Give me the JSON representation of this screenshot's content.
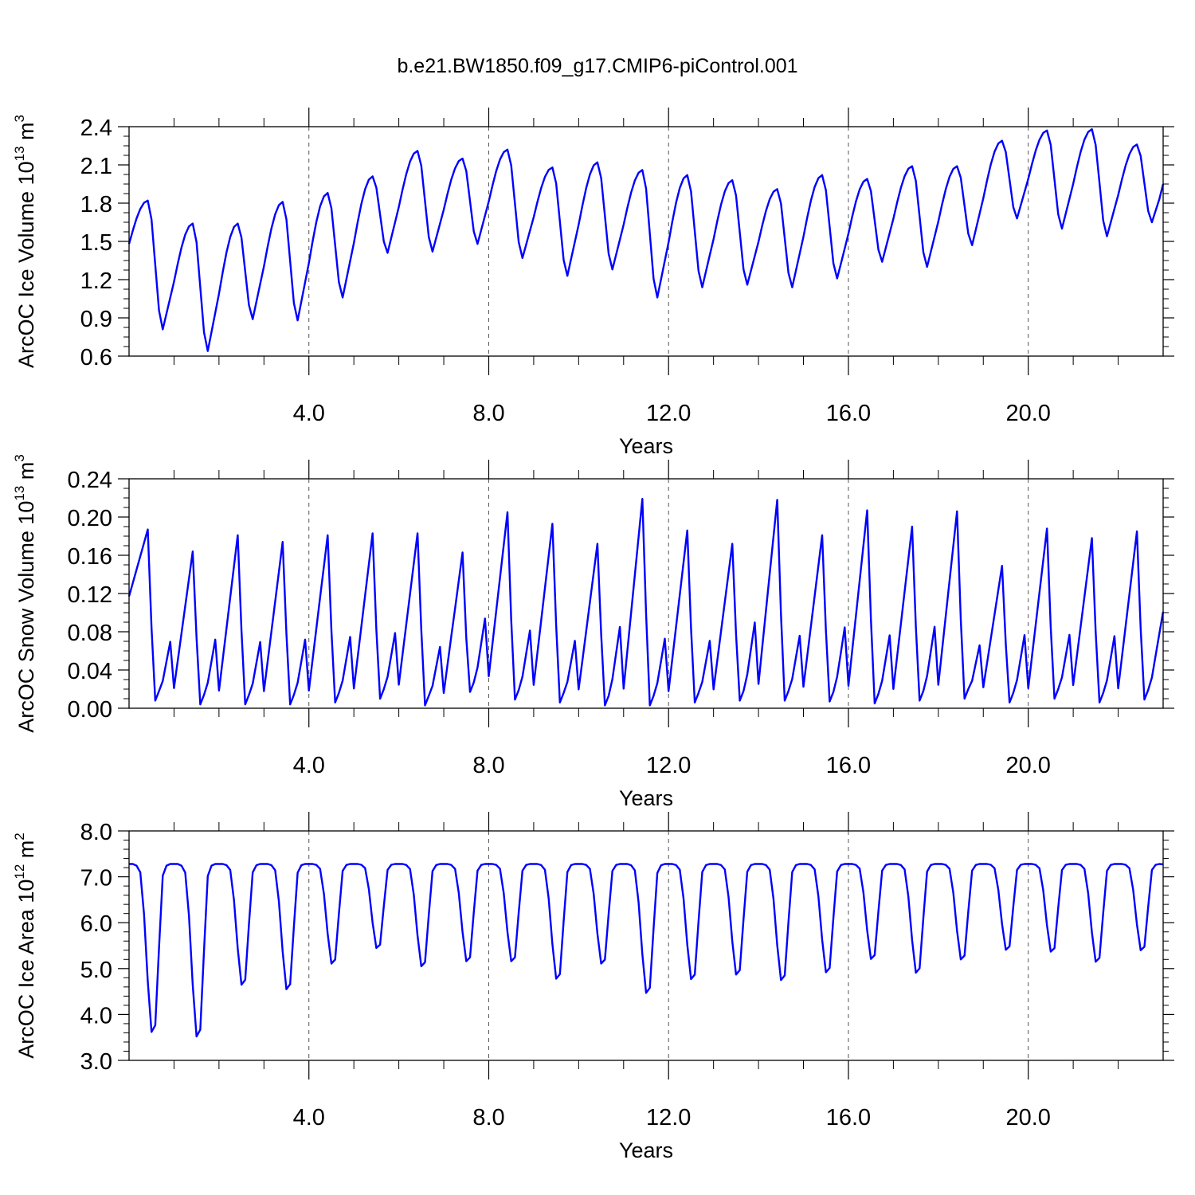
{
  "title": "b.e21.BW1850.f09_g17.CMIP6-piControl.001",
  "chart_data": [
    {
      "type": "line",
      "ylabel": "ArcOC Ice Volume 10",
      "ylabel_exp": "13",
      "ylabel_unit": " m",
      "ylabel_unit_exp": "3",
      "xlabel": "Years",
      "xlim": [
        0,
        23
      ],
      "ylim": [
        0.6,
        2.4
      ],
      "yticks": [
        "0.6",
        "0.9",
        "1.2",
        "1.5",
        "1.8",
        "2.1",
        "2.4"
      ],
      "xticks": [
        "4.0",
        "8.0",
        "12.0",
        "16.0",
        "20.0"
      ],
      "line_color": "#0000ff",
      "grid": "vertical dashed at major x ticks",
      "series": [
        {
          "peaks": [
            1.82,
            1.64,
            1.64,
            1.81,
            1.88,
            2.01,
            2.21,
            2.15,
            2.22,
            2.08,
            2.12,
            2.06,
            2.02,
            1.98,
            1.91,
            2.02,
            1.99,
            2.09,
            2.09,
            2.29,
            2.37,
            2.38,
            2.26
          ],
          "troughs": [
            0.81,
            0.64,
            0.89,
            0.88,
            1.06,
            1.41,
            1.42,
            1.48,
            1.37,
            1.23,
            1.28,
            1.06,
            1.14,
            1.16,
            1.14,
            1.21,
            1.34,
            1.3,
            1.47,
            1.68,
            1.6,
            1.54,
            1.65
          ],
          "start_value": 1.48,
          "end_value": 1.95
        }
      ]
    },
    {
      "type": "line",
      "ylabel": "ArcOC Snow Volume 10",
      "ylabel_exp": "13",
      "ylabel_unit": " m",
      "ylabel_unit_exp": "3",
      "xlabel": "Years",
      "xlim": [
        0,
        23
      ],
      "ylim": [
        0.0,
        0.24
      ],
      "yticks": [
        "0.00",
        "0.04",
        "0.08",
        "0.12",
        "0.16",
        "0.20",
        "0.24"
      ],
      "xticks": [
        "4.0",
        "8.0",
        "12.0",
        "16.0",
        "20.0"
      ],
      "line_color": "#0000ff",
      "grid": "vertical dashed at major x ticks",
      "series": [
        {
          "peaks": [
            0.187,
            0.164,
            0.181,
            0.174,
            0.181,
            0.183,
            0.183,
            0.163,
            0.205,
            0.193,
            0.172,
            0.219,
            0.186,
            0.172,
            0.218,
            0.181,
            0.207,
            0.19,
            0.206,
            0.149,
            0.188,
            0.178,
            0.185
          ],
          "troughs": [
            0.008,
            0.004,
            0.004,
            0.004,
            0.006,
            0.01,
            0.003,
            0.017,
            0.009,
            0.006,
            0.003,
            0.003,
            0.006,
            0.008,
            0.008,
            0.007,
            0.005,
            0.008,
            0.01,
            0.006,
            0.01,
            0.006,
            0.009
          ],
          "start_value": 0.117,
          "end_value": 0.101
        }
      ]
    },
    {
      "type": "line",
      "ylabel": "ArcOC Ice Area 10",
      "ylabel_exp": "12",
      "ylabel_unit": " m",
      "ylabel_unit_exp": "2",
      "xlabel": "Years",
      "xlim": [
        0,
        23
      ],
      "ylim": [
        3.0,
        8.0
      ],
      "yticks": [
        "3.0",
        "4.0",
        "5.0",
        "6.0",
        "7.0",
        "8.0"
      ],
      "xticks": [
        "4.0",
        "8.0",
        "12.0",
        "16.0",
        "20.0"
      ],
      "line_color": "#0000ff",
      "grid": "vertical dashed at major x ticks",
      "series": [
        {
          "peaks": [
            7.28,
            7.28,
            7.28,
            7.28,
            7.28,
            7.28,
            7.28,
            7.28,
            7.28,
            7.28,
            7.28,
            7.28,
            7.28,
            7.28,
            7.28,
            7.28,
            7.28,
            7.28,
            7.28,
            7.28,
            7.28,
            7.28,
            7.28
          ],
          "troughs": [
            3.62,
            3.52,
            4.65,
            4.55,
            5.11,
            5.45,
            5.05,
            5.16,
            5.16,
            4.78,
            5.11,
            4.47,
            4.77,
            4.87,
            4.75,
            4.92,
            5.21,
            4.91,
            5.2,
            5.41,
            5.37,
            5.15,
            5.4
          ],
          "start_value": 7.28,
          "end_value": 7.27
        }
      ]
    }
  ]
}
